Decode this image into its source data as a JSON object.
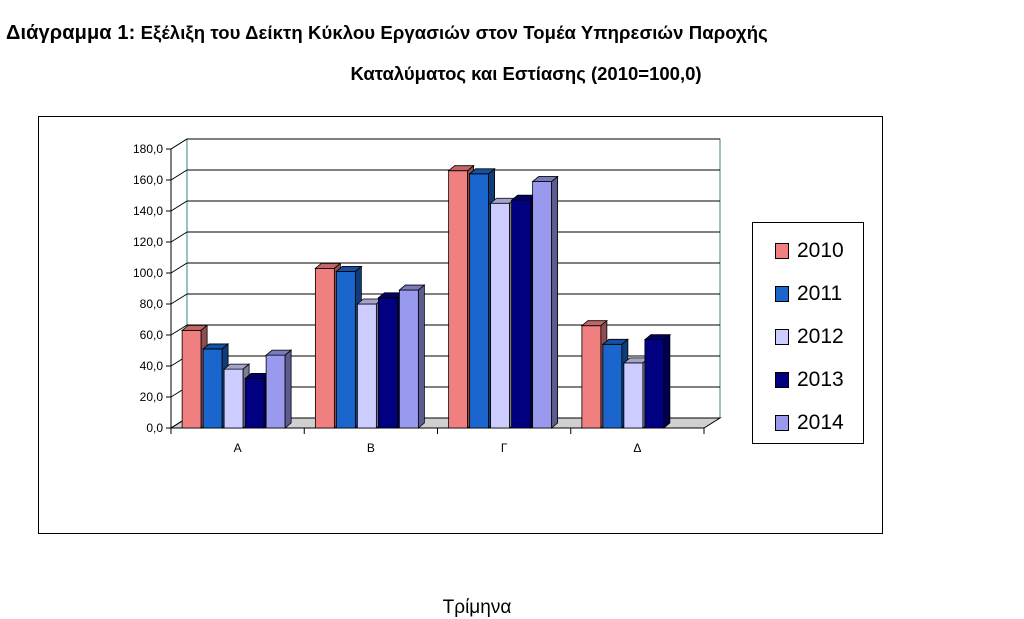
{
  "title": {
    "prefix": "Διάγραμμα 1:",
    "line1": "Εξέλιξη του Δείκτη Κύκλου Εργασιών στον Τομέα Υπηρεσιών Παροχής",
    "line2": "Καταλύματος και Εστίασης  (2010=100,0)"
  },
  "chart_data": {
    "type": "bar",
    "categories": [
      "Α",
      "Β",
      "Γ",
      "Δ"
    ],
    "series": [
      {
        "name": "2010",
        "color": "#f08080",
        "values": [
          63.0,
          103.0,
          166.0,
          66.0
        ]
      },
      {
        "name": "2011",
        "color": "#1a66cc",
        "values": [
          51.0,
          101.0,
          164.0,
          54.0
        ]
      },
      {
        "name": "2012",
        "color": "#ccccff",
        "values": [
          38.0,
          80.0,
          145.0,
          42.0
        ]
      },
      {
        "name": "2013",
        "color": "#000080",
        "values": [
          32.0,
          84.0,
          147.0,
          57.0
        ]
      },
      {
        "name": "2014",
        "color": "#9999ee",
        "values": [
          47.0,
          89.0,
          159.0,
          null
        ]
      }
    ],
    "y_ticks": [
      "0,0",
      "20,0",
      "40,0",
      "60,0",
      "80,0",
      "100,0",
      "120,0",
      "140,0",
      "160,0",
      "180,0"
    ],
    "ylim": [
      0,
      180
    ],
    "xlabel": "Τρίμηνα",
    "ylabel": "",
    "grid": true,
    "legend_position": "right",
    "style": "3d-clustered-bar"
  }
}
